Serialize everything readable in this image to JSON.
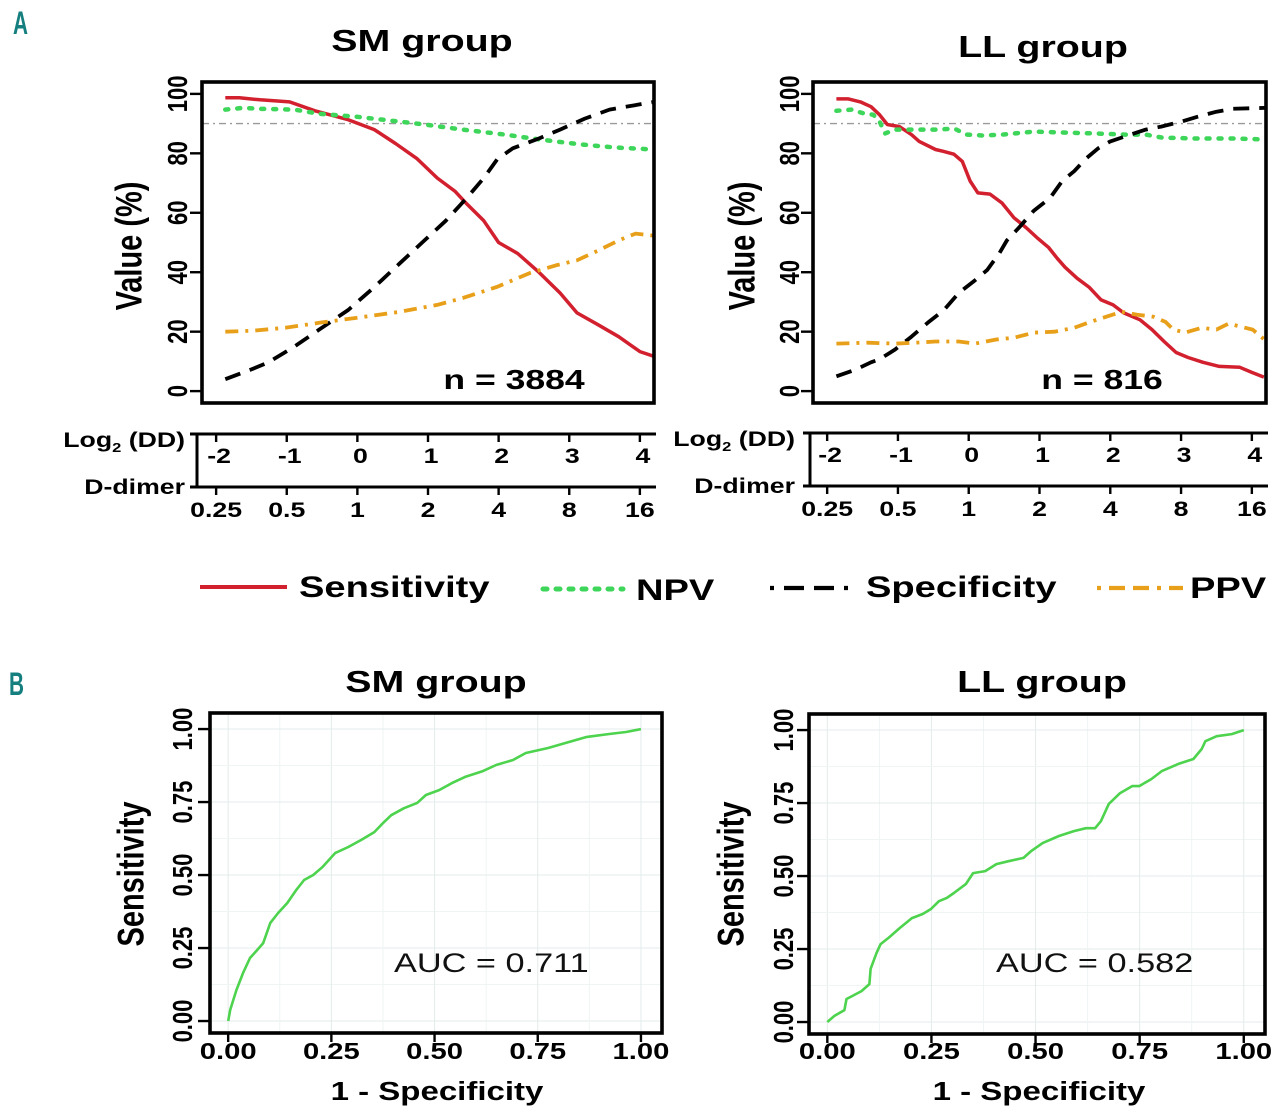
{
  "panels": {
    "a": "A",
    "b": "B"
  },
  "legend": [
    {
      "label": "Sensitivity",
      "color": "#d2202f",
      "linestyle": "solid"
    },
    {
      "label": "NPV",
      "color": "#3ed65a",
      "linestyle": "dotted"
    },
    {
      "label": "Specificity",
      "color": "#000000",
      "linestyle": "dashed"
    },
    {
      "label": "PPV",
      "color": "#e8a01a",
      "linestyle": "dashdot"
    }
  ],
  "chart_data": [
    {
      "type": "line",
      "title": "SM group",
      "ylabel": "Value (%)",
      "xlabel": "Log2 (DD) / D-dimer",
      "annotation": "n = 3884",
      "reference_line": {
        "y": 90,
        "color": "#9a9a9a",
        "linestyle": "dashdot"
      },
      "xlim": [
        -2.2,
        4.2
      ],
      "ylim": [
        -4,
        104
      ],
      "yticks": [
        0,
        20,
        40,
        60,
        80,
        100
      ],
      "grid": false,
      "x_axis": {
        "log2_label": {
          "base": "Log",
          "sub": "2",
          "rest": " (DD)"
        },
        "ddimer_label": "D-dimer",
        "log2_ticks": [
          -2,
          -1,
          0,
          1,
          2,
          3,
          4
        ],
        "ddimer_ticks": [
          "0.25",
          "0.5",
          "1",
          "2",
          "4",
          "8",
          "16"
        ]
      },
      "series": [
        {
          "name": "Sensitivity",
          "x": [
            -1.87,
            -1.67,
            -1.38,
            -0.96,
            -0.6,
            -0.13,
            0.24,
            0.54,
            0.84,
            1.13,
            1.38,
            1.55,
            1.79,
            2.0,
            2.27,
            2.57,
            2.87,
            3.11,
            3.41,
            3.7,
            4.0,
            4.2
          ],
          "y": [
            98.7,
            98.7,
            98,
            97.3,
            94.3,
            91.3,
            88,
            83.3,
            78.3,
            71.7,
            67.3,
            63,
            57.3,
            50,
            46.3,
            40,
            33,
            26.3,
            22.3,
            18.3,
            13.3,
            11.7
          ]
        },
        {
          "name": "NPV",
          "x": [
            -1.87,
            -1.62,
            -1.38,
            -0.89,
            -0.54,
            0,
            0.47,
            0.95,
            1.49,
            2.09,
            2.57,
            3.16,
            3.63,
            4.2
          ],
          "y": [
            94.7,
            95.3,
            95,
            94.7,
            93.3,
            92.3,
            91,
            89.7,
            88,
            86.3,
            84.7,
            83,
            82,
            81.3
          ]
        },
        {
          "name": "Specificity",
          "x": [
            -1.87,
            -1.5,
            -1.26,
            -0.89,
            -0.54,
            -0.13,
            0.24,
            0.6,
            0.95,
            1.25,
            1.55,
            1.79,
            1.98,
            2.2,
            2.57,
            2.87,
            3.22,
            3.57,
            4.2
          ],
          "y": [
            4,
            7.3,
            9.7,
            15,
            20.7,
            27.3,
            35,
            43,
            50.7,
            57.3,
            65,
            71.7,
            78,
            81.7,
            85,
            88,
            91.7,
            94.7,
            97.3
          ]
        },
        {
          "name": "PPV",
          "x": [
            -1.87,
            -1.5,
            -1.02,
            -0.54,
            0,
            0.6,
            1.13,
            1.49,
            1.97,
            2.44,
            2.81,
            3.11,
            3.41,
            3.7,
            3.94,
            4.2
          ],
          "y": [
            20,
            20.3,
            21.3,
            23,
            24.7,
            26.7,
            29,
            31.3,
            35,
            39.7,
            42.3,
            44,
            47.3,
            50.7,
            53,
            52.3
          ]
        }
      ]
    },
    {
      "type": "line",
      "title": "LL group",
      "ylabel": "Value (%)",
      "xlabel": "Log2 (DD) / D-dimer",
      "annotation": "n = 816",
      "reference_line": {
        "y": 90,
        "color": "#9a9a9a",
        "linestyle": "dashdot"
      },
      "xlim": [
        -2.2,
        4.2
      ],
      "ylim": [
        -4,
        104
      ],
      "yticks": [
        0,
        20,
        40,
        60,
        80,
        100
      ],
      "grid": false,
      "x_axis": {
        "log2_label": {
          "base": "Log",
          "sub": "2",
          "rest": " (DD)"
        },
        "ddimer_label": "D-dimer",
        "log2_ticks": [
          -2,
          -1,
          0,
          1,
          2,
          3,
          4
        ],
        "ddimer_ticks": [
          "0.25",
          "0.5",
          "1",
          "2",
          "4",
          "8",
          "16"
        ]
      },
      "series": [
        {
          "name": "Sensitivity",
          "x": [
            -1.87,
            -1.7,
            -1.53,
            -1.38,
            -1.26,
            -1.15,
            -0.98,
            -0.81,
            -0.7,
            -0.47,
            -0.36,
            -0.21,
            -0.09,
            0.02,
            0.13,
            0.3,
            0.47,
            0.64,
            0.81,
            0.96,
            1.13,
            1.25,
            1.36,
            1.53,
            1.7,
            1.87,
            2.04,
            2.19,
            2.42,
            2.59,
            2.76,
            2.93,
            3.1,
            3.31,
            3.54,
            3.83,
            4.0,
            4.17
          ],
          "y": [
            98.3,
            98.3,
            97.3,
            95.7,
            93,
            89.7,
            89,
            86.3,
            84,
            81.3,
            80.7,
            79.7,
            77.3,
            70.7,
            66.7,
            66.3,
            63.3,
            58.3,
            55,
            51.7,
            48.3,
            44.7,
            41.7,
            38,
            35,
            30.7,
            29,
            26.3,
            24,
            20.7,
            16.7,
            13,
            11.3,
            9.7,
            8.3,
            8,
            6.3,
            4.7
          ]
        },
        {
          "name": "NPV",
          "x": [
            -1.87,
            -1.65,
            -1.47,
            -1.35,
            -1.26,
            -1.18,
            -1.04,
            -0.81,
            -0.47,
            -0.2,
            -0.03,
            0.2,
            0.48,
            0.92,
            1.32,
            1.77,
            2.21,
            2.5,
            2.73,
            3.18,
            3.73,
            4.18
          ],
          "y": [
            94.3,
            94.7,
            93.3,
            93,
            90.7,
            86.7,
            88,
            88,
            88,
            88.3,
            86.3,
            86,
            86.3,
            87.3,
            87,
            86.7,
            86.3,
            86.3,
            85.3,
            85,
            85,
            84.7
          ]
        },
        {
          "name": "Specificity",
          "x": [
            -1.87,
            -1.59,
            -1.38,
            -1.26,
            -1.04,
            -0.81,
            -0.58,
            -0.35,
            -0.14,
            0.09,
            0.26,
            0.43,
            0.54,
            0.71,
            0.92,
            1.15,
            1.32,
            1.49,
            1.66,
            1.83,
            2.0,
            2.21,
            2.5,
            2.72,
            3.01,
            3.23,
            3.5,
            3.73,
            4.18
          ],
          "y": [
            5,
            7.3,
            9.7,
            10.7,
            14,
            18.3,
            23,
            27.3,
            33,
            37.3,
            40.7,
            46.3,
            50.7,
            55,
            60.7,
            65,
            70.7,
            74,
            78.3,
            81.7,
            84,
            85.7,
            88,
            89,
            90.7,
            92.3,
            94,
            95,
            95.3
          ]
        },
        {
          "name": "PPV",
          "x": [
            -1.87,
            -1.43,
            -1.04,
            -0.75,
            -0.47,
            -0.14,
            0.09,
            0.37,
            0.65,
            0.92,
            1.21,
            1.49,
            1.72,
            1.94,
            2.16,
            2.38,
            2.61,
            2.78,
            2.89,
            3.06,
            3.29,
            3.5,
            3.67,
            3.84,
            4.01,
            4.18
          ],
          "y": [
            16,
            16.3,
            16,
            16.3,
            16.7,
            16.7,
            16,
            17.3,
            18,
            19.7,
            20,
            21.3,
            23.3,
            25,
            26.7,
            25.7,
            25,
            23.3,
            20.7,
            19.7,
            21.3,
            20.7,
            22.7,
            21.7,
            20.7,
            17.3
          ]
        }
      ]
    },
    {
      "type": "line",
      "title": "SM group",
      "xlabel": "1 - Specificity",
      "ylabel": "Sensitivity",
      "annotation": "AUC = 0.711",
      "auc": 0.711,
      "xlim": [
        -0.044,
        1.051
      ],
      "ylim": [
        -0.041,
        1.055
      ],
      "xticks": [
        0,
        0.25,
        0.5,
        0.75,
        1
      ],
      "xtick_labels": [
        "0.00",
        "0.25",
        "0.50",
        "0.75",
        "1.00"
      ],
      "yticks": [
        0,
        0.25,
        0.5,
        0.75,
        1
      ],
      "ytick_labels": [
        "0.00",
        "0.25",
        "0.50",
        "0.75",
        "1.00"
      ],
      "grid": true,
      "line_color": "#4dd34d",
      "series": [
        {
          "name": "ROC",
          "x": [
            0,
            0.005,
            0.02,
            0.036,
            0.053,
            0.07,
            0.085,
            0.102,
            0.121,
            0.143,
            0.165,
            0.184,
            0.206,
            0.228,
            0.259,
            0.291,
            0.322,
            0.354,
            0.375,
            0.395,
            0.426,
            0.458,
            0.479,
            0.511,
            0.542,
            0.574,
            0.617,
            0.649,
            0.69,
            0.721,
            0.775,
            0.816,
            0.869,
            0.923,
            0.964,
            1.0
          ],
          "y": [
            0,
            0.038,
            0.106,
            0.164,
            0.216,
            0.243,
            0.267,
            0.336,
            0.37,
            0.404,
            0.449,
            0.483,
            0.5,
            0.527,
            0.575,
            0.596,
            0.62,
            0.647,
            0.678,
            0.705,
            0.729,
            0.747,
            0.774,
            0.791,
            0.815,
            0.836,
            0.856,
            0.877,
            0.894,
            0.918,
            0.935,
            0.952,
            0.973,
            0.983,
            0.99,
            1.0
          ]
        }
      ]
    },
    {
      "type": "line",
      "title": "LL group",
      "xlabel": "1 - Specificity",
      "ylabel": "Sensitivity",
      "annotation": "AUC = 0.582",
      "auc": 0.582,
      "xlim": [
        -0.044,
        1.051
      ],
      "ylim": [
        -0.041,
        1.055
      ],
      "xticks": [
        0,
        0.25,
        0.5,
        0.75,
        1
      ],
      "xtick_labels": [
        "0.00",
        "0.25",
        "0.50",
        "0.75",
        "1.00"
      ],
      "yticks": [
        0,
        0.25,
        0.5,
        0.75,
        1
      ],
      "ytick_labels": [
        "0.00",
        "0.25",
        "0.50",
        "0.75",
        "1.00"
      ],
      "grid": true,
      "line_color": "#4dd34d",
      "series": [
        {
          "name": "ROC",
          "x": [
            0,
            0.017,
            0.041,
            0.046,
            0.06,
            0.082,
            0.101,
            0.104,
            0.118,
            0.128,
            0.147,
            0.174,
            0.203,
            0.229,
            0.249,
            0.268,
            0.287,
            0.304,
            0.333,
            0.35,
            0.379,
            0.406,
            0.435,
            0.471,
            0.49,
            0.517,
            0.556,
            0.592,
            0.621,
            0.643,
            0.657,
            0.676,
            0.703,
            0.732,
            0.749,
            0.778,
            0.804,
            0.843,
            0.879,
            0.899,
            0.908,
            0.935,
            0.971,
            1.0
          ],
          "y": [
            0,
            0.021,
            0.041,
            0.079,
            0.089,
            0.106,
            0.13,
            0.182,
            0.236,
            0.267,
            0.288,
            0.322,
            0.356,
            0.37,
            0.387,
            0.414,
            0.425,
            0.442,
            0.473,
            0.51,
            0.517,
            0.541,
            0.551,
            0.562,
            0.586,
            0.613,
            0.637,
            0.654,
            0.664,
            0.664,
            0.688,
            0.747,
            0.784,
            0.808,
            0.808,
            0.832,
            0.86,
            0.884,
            0.901,
            0.935,
            0.962,
            0.979,
            0.986,
            1.0
          ]
        }
      ]
    }
  ]
}
